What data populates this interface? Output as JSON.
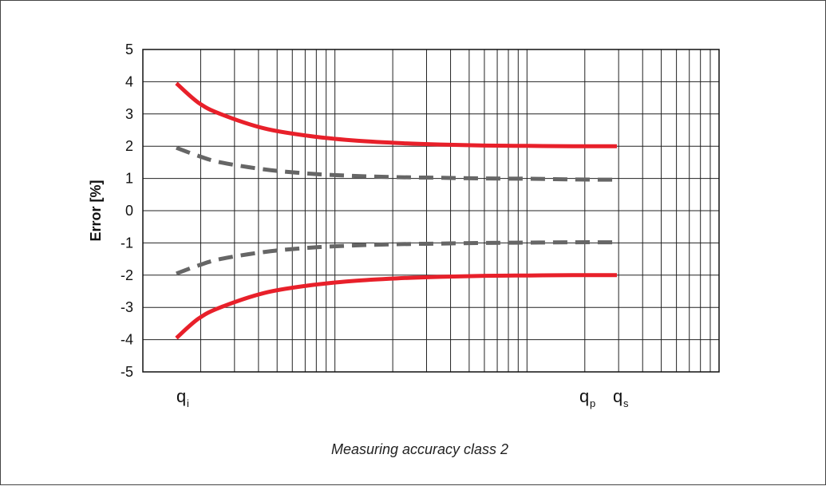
{
  "chart_data": {
    "type": "line",
    "title": "",
    "caption": "Measuring accuracy class 2",
    "ylabel": "Error [%]",
    "xlabel": "",
    "ylim": [
      -5,
      5
    ],
    "yticks": [
      "5",
      "4",
      "3",
      "2",
      "1",
      "0",
      "-1",
      "-2",
      "-3",
      "-4",
      "-5"
    ],
    "x_scale": "log",
    "grid": true,
    "x_markers": [
      {
        "main": "q",
        "sub": "i"
      },
      {
        "main": "q",
        "sub": "p"
      },
      {
        "main": "q",
        "sub": "s"
      }
    ],
    "series": [
      {
        "style": "solid",
        "color": "#e8202a",
        "x": [
          0,
          0.05,
          0.1,
          0.2,
          0.3,
          0.4,
          0.5,
          0.6,
          0.7,
          0.8,
          0.9,
          1
        ],
        "values": [
          3.95,
          3.35,
          3.0,
          2.55,
          2.32,
          2.18,
          2.1,
          2.05,
          2.02,
          2.01,
          2.0,
          2.0
        ]
      },
      {
        "style": "dashed",
        "color": "#666666",
        "x": [
          0,
          0.05,
          0.1,
          0.2,
          0.3,
          0.4,
          0.5,
          0.6,
          0.7,
          0.8,
          0.9,
          1
        ],
        "values": [
          1.95,
          1.7,
          1.5,
          1.28,
          1.15,
          1.08,
          1.04,
          1.02,
          1.0,
          0.99,
          0.97,
          0.96
        ]
      },
      {
        "style": "dashed",
        "color": "#666666",
        "x": [
          0,
          0.05,
          0.1,
          0.2,
          0.3,
          0.4,
          0.5,
          0.6,
          0.7,
          0.8,
          0.9,
          1
        ],
        "values": [
          -1.95,
          -1.7,
          -1.5,
          -1.28,
          -1.15,
          -1.08,
          -1.04,
          -1.02,
          -1.0,
          -0.99,
          -0.98,
          -0.98
        ]
      },
      {
        "style": "solid",
        "color": "#e8202a",
        "x": [
          0,
          0.05,
          0.1,
          0.2,
          0.3,
          0.4,
          0.5,
          0.6,
          0.7,
          0.8,
          0.9,
          1
        ],
        "values": [
          -3.95,
          -3.35,
          -3.0,
          -2.55,
          -2.32,
          -2.18,
          -2.1,
          -2.05,
          -2.02,
          -2.01,
          -2.0,
          -2.0
        ]
      }
    ]
  }
}
